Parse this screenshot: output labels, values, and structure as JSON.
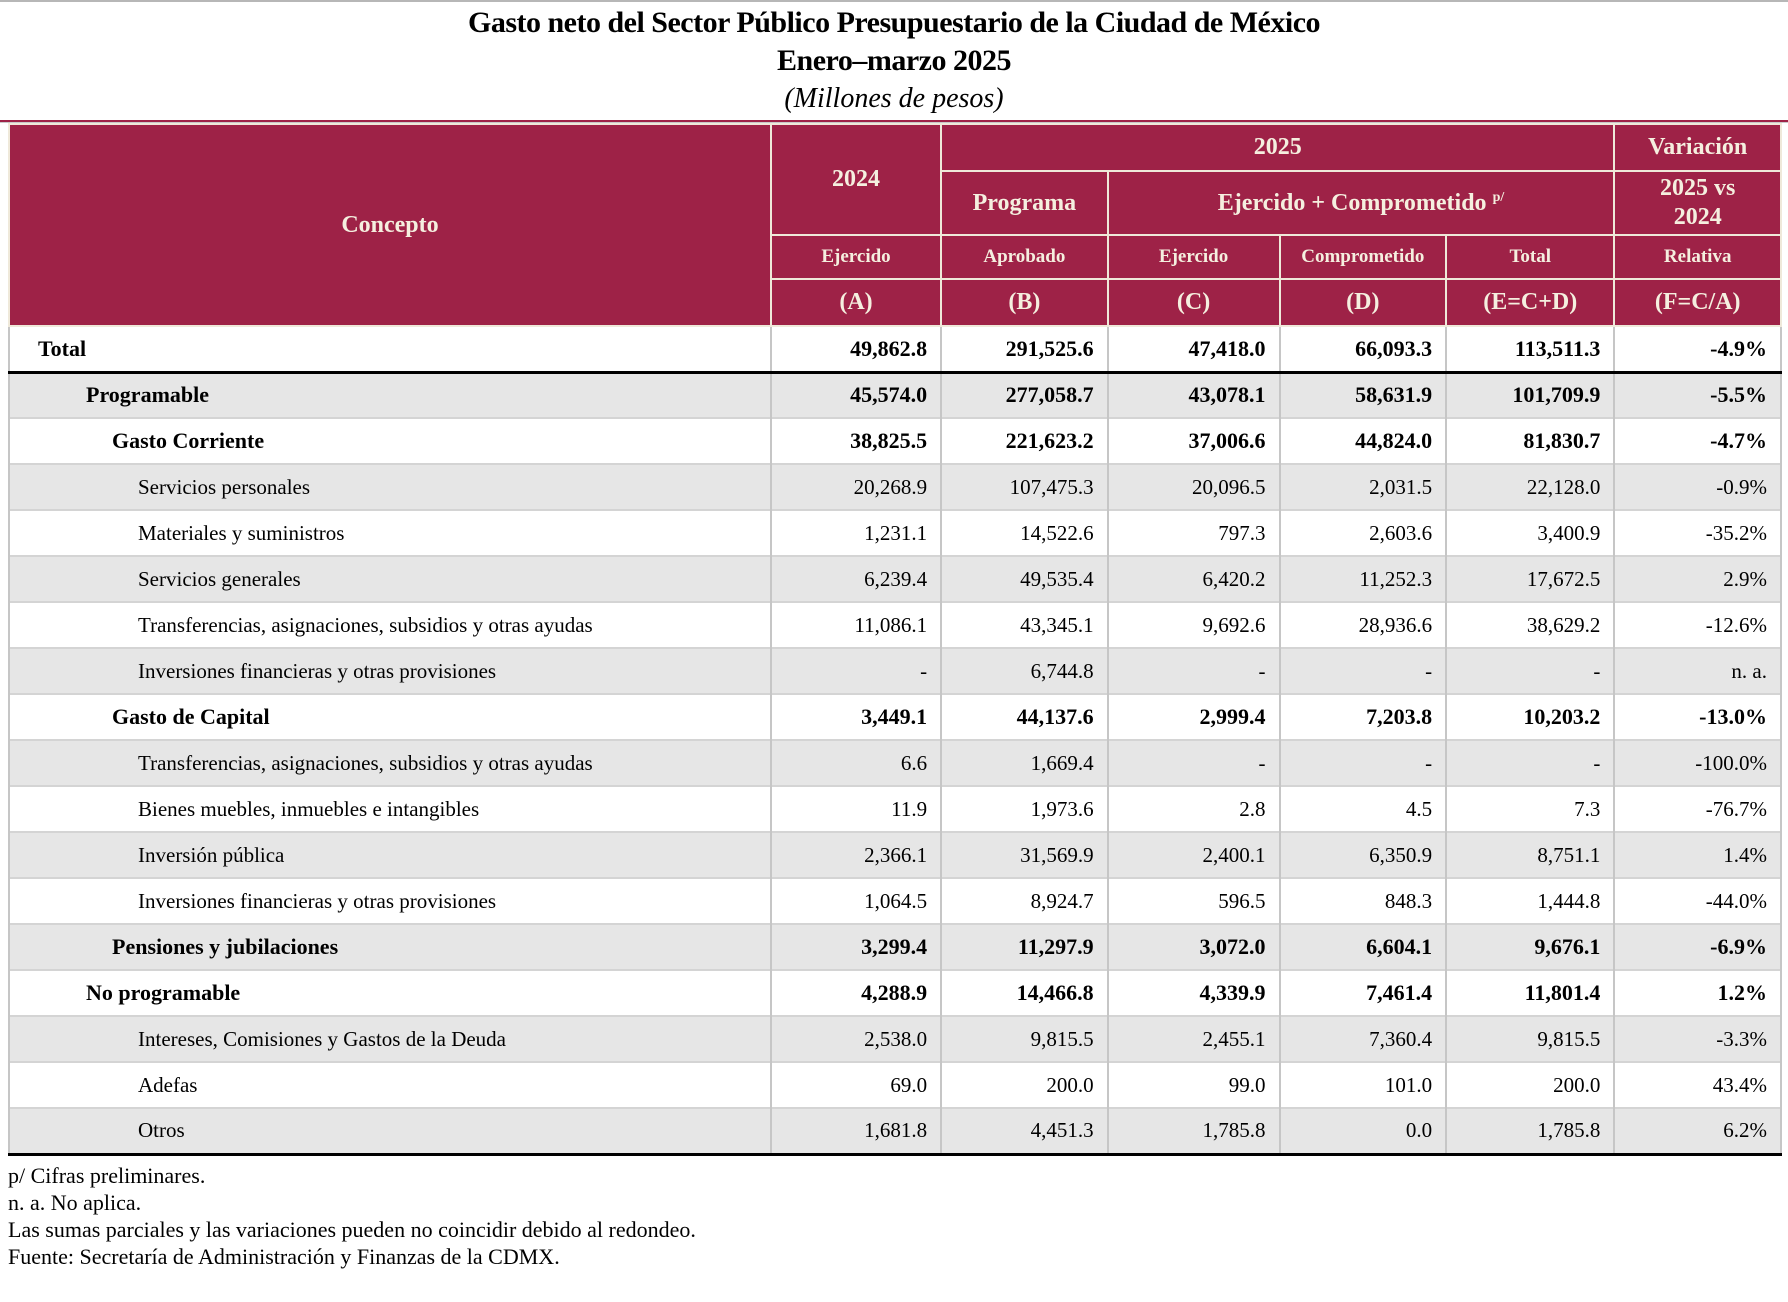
{
  "title": {
    "line1": "Gasto neto del Sector Público Presupuestario de la Ciudad de México",
    "line2": "Enero–marzo 2025",
    "line3": "(Millones de pesos)"
  },
  "colors": {
    "header_background": "#9E2247",
    "header_text": "#F5EFDF",
    "row_shade": "#e6e6e6",
    "row_plain": "#ffffff"
  },
  "table": {
    "header": {
      "concepto": "Concepto",
      "y2024": "2024",
      "y2025": "2025",
      "variacion": "Variación",
      "programa": "Programa",
      "ejercido_comprometido": "Ejercido + Comprometido",
      "ejercido_comprometido_sup": "p/",
      "vs": "2025 vs 2024",
      "ejercido_2024": "Ejercido",
      "aprobado": "Aprobado",
      "ejercido_2025": "Ejercido",
      "comprometido": "Comprometido",
      "total": "Total",
      "relativa": "Relativa",
      "code_a": "(A)",
      "code_b": "(B)",
      "code_c": "(C)",
      "code_d": "(D)",
      "code_e": "(E=C+D)",
      "code_f": "(F=C/A)"
    },
    "rows": [
      {
        "label": "Total",
        "level": 0,
        "bold": true,
        "values": [
          "49,862.8",
          "291,525.6",
          "47,418.0",
          "66,093.3",
          "113,511.3",
          "-4.9%"
        ]
      },
      {
        "label": "Programable",
        "level": 1,
        "bold": true,
        "values": [
          "45,574.0",
          "277,058.7",
          "43,078.1",
          "58,631.9",
          "101,709.9",
          "-5.5%"
        ]
      },
      {
        "label": "Gasto Corriente",
        "level": 2,
        "bold": true,
        "values": [
          "38,825.5",
          "221,623.2",
          "37,006.6",
          "44,824.0",
          "81,830.7",
          "-4.7%"
        ]
      },
      {
        "label": "Servicios personales",
        "level": 3,
        "bold": false,
        "values": [
          "20,268.9",
          "107,475.3",
          "20,096.5",
          "2,031.5",
          "22,128.0",
          "-0.9%"
        ]
      },
      {
        "label": "Materiales y suministros",
        "level": 3,
        "bold": false,
        "values": [
          "1,231.1",
          "14,522.6",
          "797.3",
          "2,603.6",
          "3,400.9",
          "-35.2%"
        ]
      },
      {
        "label": "Servicios generales",
        "level": 3,
        "bold": false,
        "values": [
          "6,239.4",
          "49,535.4",
          "6,420.2",
          "11,252.3",
          "17,672.5",
          "2.9%"
        ]
      },
      {
        "label": "Transferencias, asignaciones, subsidios y otras ayudas",
        "level": 3,
        "bold": false,
        "values": [
          "11,086.1",
          "43,345.1",
          "9,692.6",
          "28,936.6",
          "38,629.2",
          "-12.6%"
        ]
      },
      {
        "label": "Inversiones financieras y otras provisiones",
        "level": 3,
        "bold": false,
        "values": [
          "-",
          "6,744.8",
          "-",
          "-",
          "-",
          "n. a."
        ]
      },
      {
        "label": "Gasto de Capital",
        "level": 2,
        "bold": true,
        "values": [
          "3,449.1",
          "44,137.6",
          "2,999.4",
          "7,203.8",
          "10,203.2",
          "-13.0%"
        ]
      },
      {
        "label": "Transferencias, asignaciones, subsidios y otras ayudas",
        "level": 3,
        "bold": false,
        "values": [
          "6.6",
          "1,669.4",
          "-",
          "-",
          "-",
          "-100.0%"
        ]
      },
      {
        "label": "Bienes muebles, inmuebles e intangibles",
        "level": 3,
        "bold": false,
        "values": [
          "11.9",
          "1,973.6",
          "2.8",
          "4.5",
          "7.3",
          "-76.7%"
        ]
      },
      {
        "label": "Inversión pública",
        "level": 3,
        "bold": false,
        "values": [
          "2,366.1",
          "31,569.9",
          "2,400.1",
          "6,350.9",
          "8,751.1",
          "1.4%"
        ]
      },
      {
        "label": "Inversiones financieras y otras provisiones",
        "level": 3,
        "bold": false,
        "values": [
          "1,064.5",
          "8,924.7",
          "596.5",
          "848.3",
          "1,444.8",
          "-44.0%"
        ]
      },
      {
        "label": "Pensiones y jubilaciones",
        "level": 2,
        "bold": true,
        "values": [
          "3,299.4",
          "11,297.9",
          "3,072.0",
          "6,604.1",
          "9,676.1",
          "-6.9%"
        ]
      },
      {
        "label": "No programable",
        "level": 1,
        "bold": true,
        "values": [
          "4,288.9",
          "14,466.8",
          "4,339.9",
          "7,461.4",
          "11,801.4",
          "1.2%"
        ]
      },
      {
        "label": "Intereses, Comisiones y Gastos de la Deuda",
        "level": 3,
        "bold": false,
        "values": [
          "2,538.0",
          "9,815.5",
          "2,455.1",
          "7,360.4",
          "9,815.5",
          "-3.3%"
        ]
      },
      {
        "label": "Adefas",
        "level": 3,
        "bold": false,
        "values": [
          "69.0",
          "200.0",
          "99.0",
          "101.0",
          "200.0",
          "43.4%"
        ]
      },
      {
        "label": "Otros",
        "level": 3,
        "bold": false,
        "values": [
          "1,681.8",
          "4,451.3",
          "1,785.8",
          "0.0",
          "1,785.8",
          "6.2%"
        ]
      }
    ]
  },
  "footnotes": [
    "p/ Cifras preliminares.",
    "n. a. No aplica.",
    "Las sumas parciales y las variaciones pueden no coincidir debido al redondeo.",
    "Fuente: Secretaría de Administración y Finanzas de la CDMX."
  ]
}
